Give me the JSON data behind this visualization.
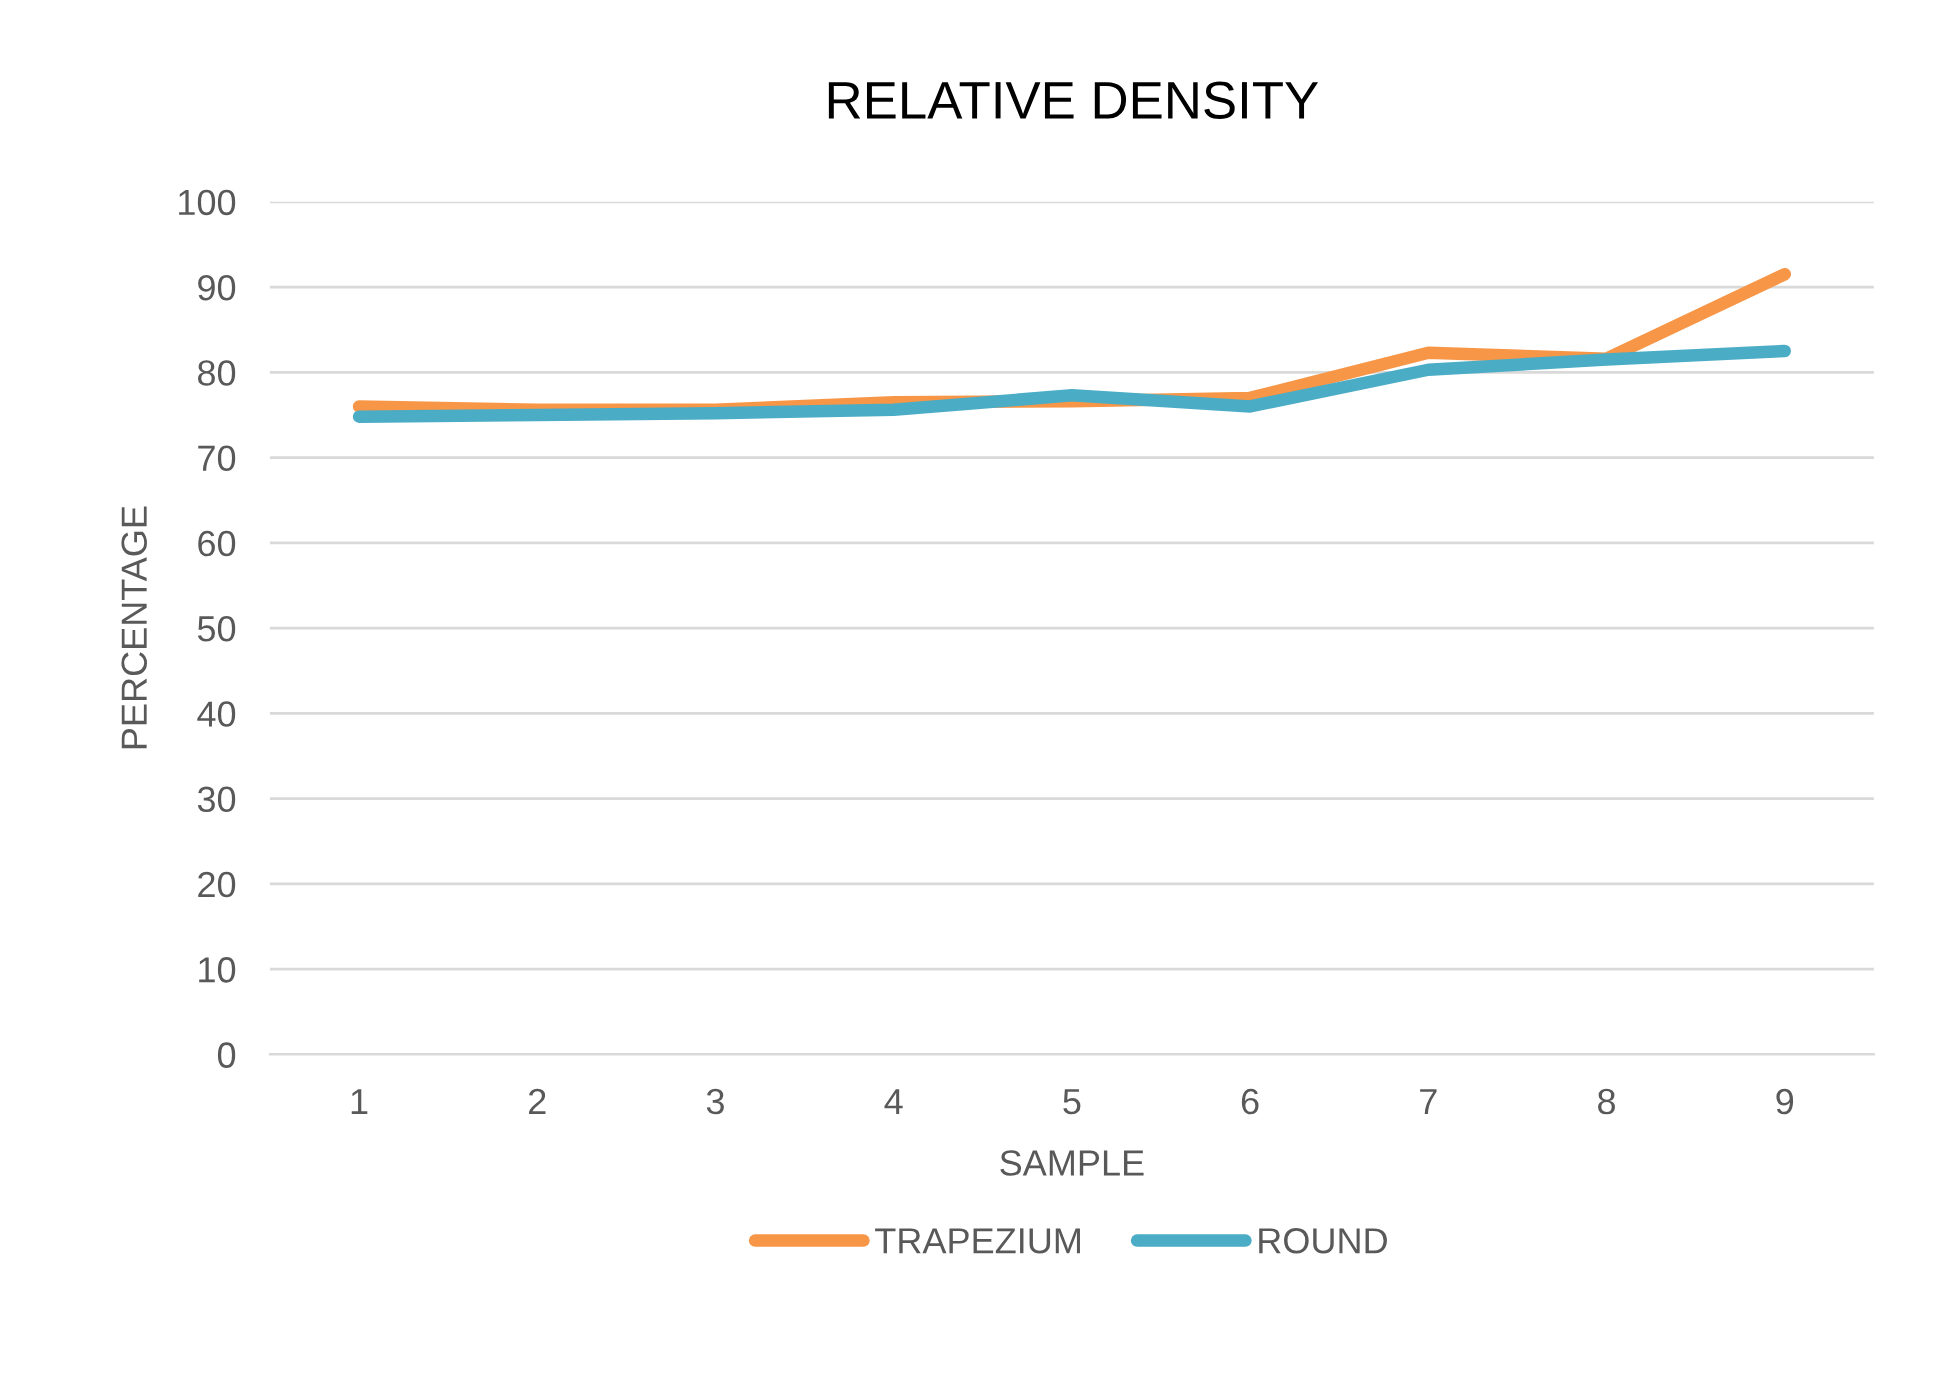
{
  "chart_data": {
    "type": "line",
    "title": "RELATIVE DENSITY",
    "xlabel": "SAMPLE",
    "ylabel": "PERCENTAGE",
    "categories": [
      "1",
      "2",
      "3",
      "4",
      "5",
      "6",
      "7",
      "8",
      "9"
    ],
    "series": [
      {
        "name": "TRAPEZIUM",
        "color": "#f79646",
        "values": [
          76.0,
          75.6,
          75.6,
          76.5,
          76.6,
          77.0,
          82.3,
          81.6,
          91.5
        ]
      },
      {
        "name": "ROUND",
        "color": "#4bacc6",
        "values": [
          74.8,
          75.0,
          75.2,
          75.6,
          77.3,
          76.0,
          80.3,
          81.5,
          82.5
        ]
      }
    ],
    "ylim": [
      0,
      100
    ],
    "yticks": [
      0,
      10,
      20,
      30,
      40,
      50,
      60,
      70,
      80,
      90,
      100
    ],
    "grid": "y",
    "legend": "bottom",
    "marker": "none",
    "line_style": "solid"
  }
}
